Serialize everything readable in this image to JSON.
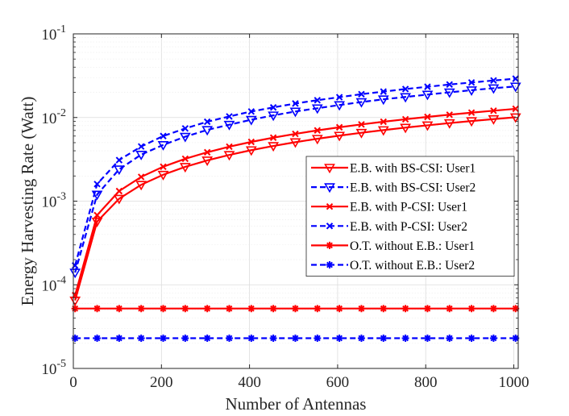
{
  "chart_data": {
    "type": "line",
    "title": "",
    "xlabel": "Number of Antennas",
    "ylabel": "Energy Harvesting Rate (Watt)",
    "xlim": [
      0,
      1010
    ],
    "ylim": [
      1e-05,
      0.1
    ],
    "yscale": "log",
    "grid": true,
    "minor_grid": true,
    "legend_position": "center-right",
    "x_ticks": [
      0,
      200,
      400,
      600,
      800,
      1000
    ],
    "x_tick_labels": [
      "0",
      "200",
      "400",
      "600",
      "800",
      "1000"
    ],
    "y_ticks": [
      1e-05,
      0.0001,
      0.001,
      0.01,
      0.1
    ],
    "y_tick_labels": [
      {
        "base": "10",
        "exp": "-5"
      },
      {
        "base": "10",
        "exp": "-4"
      },
      {
        "base": "10",
        "exp": "-3"
      },
      {
        "base": "10",
        "exp": "-2"
      },
      {
        "base": "10",
        "exp": "-1"
      }
    ],
    "x": [
      4,
      54,
      104,
      154,
      204,
      254,
      304,
      354,
      404,
      454,
      504,
      554,
      604,
      654,
      704,
      754,
      804,
      854,
      904,
      954,
      1004
    ],
    "series": [
      {
        "name": "E.B. with BS-CSI: User1",
        "color": "#ff0000",
        "dash": "solid",
        "marker": "triangle-down",
        "values": [
          6.5e-05,
          0.00057,
          0.00107,
          0.00157,
          0.00207,
          0.00257,
          0.00307,
          0.00357,
          0.00407,
          0.00457,
          0.00507,
          0.00557,
          0.00607,
          0.00657,
          0.00707,
          0.00757,
          0.00807,
          0.00857,
          0.00907,
          0.00957,
          0.01007
        ]
      },
      {
        "name": "E.B. with BS-CSI: User2",
        "color": "#0000ff",
        "dash": "dashed",
        "marker": "triangle-down",
        "values": [
          0.00014,
          0.0012,
          0.0024,
          0.0036,
          0.0047,
          0.0059,
          0.0071,
          0.0082,
          0.0094,
          0.0106,
          0.0118,
          0.0129,
          0.0141,
          0.0153,
          0.0165,
          0.0176,
          0.0188,
          0.02,
          0.0212,
          0.0224,
          0.0235
        ]
      },
      {
        "name": "E.B. with P-CSI: User1",
        "color": "#ff0000",
        "dash": "solid",
        "marker": "x",
        "values": [
          7.5e-05,
          0.00068,
          0.00132,
          0.00195,
          0.00258,
          0.00321,
          0.00384,
          0.00448,
          0.00511,
          0.00574,
          0.00637,
          0.00701,
          0.00764,
          0.00827,
          0.0089,
          0.00953,
          0.01017,
          0.0108,
          0.01143,
          0.01206,
          0.0127
        ]
      },
      {
        "name": "E.B. with P-CSI: User2",
        "color": "#0000ff",
        "dash": "dashed",
        "marker": "x",
        "values": [
          0.00017,
          0.0016,
          0.0031,
          0.0045,
          0.006,
          0.0074,
          0.0089,
          0.0103,
          0.0118,
          0.0132,
          0.0147,
          0.0161,
          0.0175,
          0.019,
          0.0204,
          0.0219,
          0.0233,
          0.0248,
          0.0262,
          0.0277,
          0.0291
        ]
      },
      {
        "name": "O.T. without E.B.: User1",
        "color": "#ff0000",
        "dash": "solid",
        "marker": "asterisk",
        "values": [
          5.2e-05,
          5.2e-05,
          5.2e-05,
          5.2e-05,
          5.2e-05,
          5.2e-05,
          5.2e-05,
          5.2e-05,
          5.2e-05,
          5.2e-05,
          5.2e-05,
          5.2e-05,
          5.2e-05,
          5.2e-05,
          5.2e-05,
          5.2e-05,
          5.2e-05,
          5.2e-05,
          5.2e-05,
          5.2e-05,
          5.2e-05
        ]
      },
      {
        "name": "O.T. without E.B.: User2",
        "color": "#0000ff",
        "dash": "dashed",
        "marker": "asterisk",
        "values": [
          2.3e-05,
          2.3e-05,
          2.3e-05,
          2.3e-05,
          2.3e-05,
          2.3e-05,
          2.3e-05,
          2.3e-05,
          2.3e-05,
          2.3e-05,
          2.3e-05,
          2.3e-05,
          2.3e-05,
          2.3e-05,
          2.3e-05,
          2.3e-05,
          2.3e-05,
          2.3e-05,
          2.3e-05,
          2.3e-05,
          2.3e-05
        ]
      }
    ]
  }
}
